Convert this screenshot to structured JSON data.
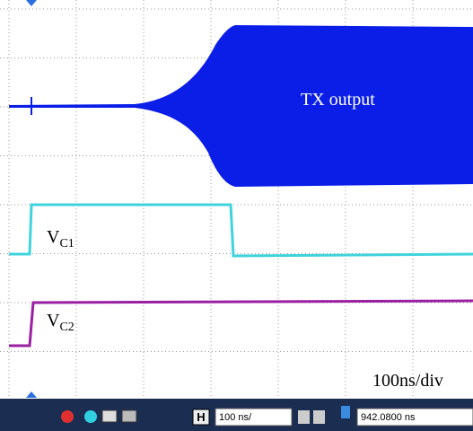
{
  "screen": {
    "tx_label": "TX output",
    "vc1_label": {
      "main": "V",
      "sub": "C1"
    },
    "vc2_label": {
      "main": "V",
      "sub": "C2"
    },
    "timebase_label": "100ns/div"
  },
  "toolbar": {
    "h_button": "H",
    "timebase_field": "100 ns/",
    "position_field": "942.0800 ns"
  }
}
